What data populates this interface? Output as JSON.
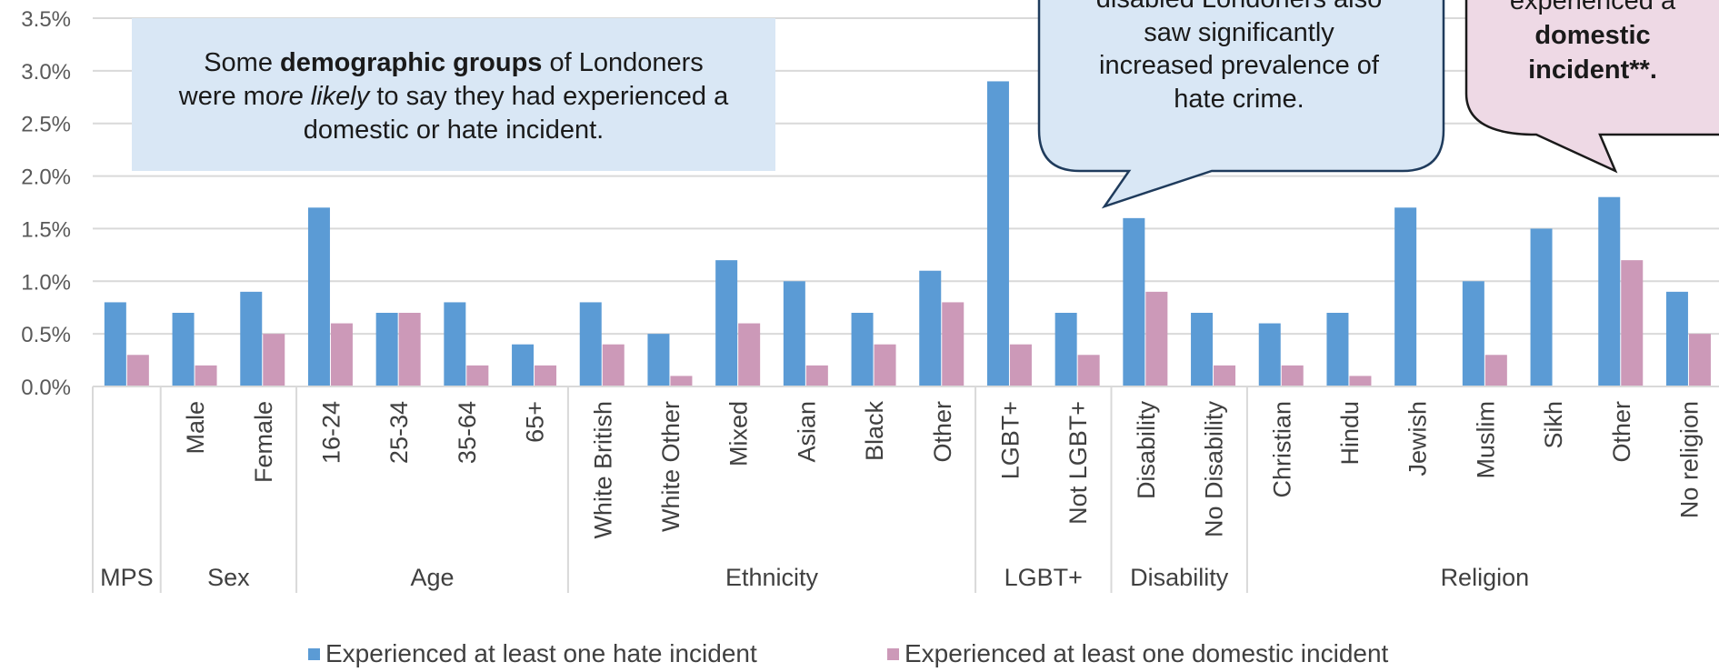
{
  "chart_data": {
    "type": "bar",
    "ylim": [
      0,
      3.5
    ],
    "y_ticks": [
      "0.0%",
      "0.5%",
      "1.0%",
      "1.5%",
      "2.0%",
      "2.5%",
      "3.0%",
      "3.5%"
    ],
    "y_tick_values": [
      0,
      0.5,
      1.0,
      1.5,
      2.0,
      2.5,
      3.0,
      3.5
    ],
    "grid": "horizontal",
    "legend_position": "bottom",
    "categories": [
      "",
      "Male",
      "Female",
      "16-24",
      "25-34",
      "35-64",
      "65+",
      "White British",
      "White Other",
      "Mixed",
      "Asian",
      "Black",
      "Other",
      "LGBT+",
      "Not LGBT+",
      "Disability",
      "No Disability",
      "Christian",
      "Hindu",
      "Jewish",
      "Muslim",
      "Sikh",
      "Other",
      "No religion"
    ],
    "groups": [
      {
        "label": "MPS",
        "count": 1
      },
      {
        "label": "Sex",
        "count": 2
      },
      {
        "label": "Age",
        "count": 4
      },
      {
        "label": "Ethnicity",
        "count": 6
      },
      {
        "label": "LGBT+",
        "count": 2
      },
      {
        "label": "Disability",
        "count": 2
      },
      {
        "label": "Religion",
        "count": 7
      }
    ],
    "series": [
      {
        "name": "Experienced at least one hate incident",
        "color": "#5b9bd5",
        "values": [
          0.8,
          0.7,
          0.9,
          1.7,
          0.7,
          0.8,
          0.4,
          0.8,
          0.5,
          1.2,
          1.0,
          0.7,
          1.1,
          2.9,
          0.7,
          1.6,
          0.7,
          0.6,
          0.7,
          1.7,
          1.0,
          1.5,
          1.8,
          0.9
        ]
      },
      {
        "name": "Experienced at least one domestic incident",
        "color": "#cc99b8",
        "values": [
          0.3,
          0.2,
          0.5,
          0.6,
          0.7,
          0.2,
          0.2,
          0.4,
          0.1,
          0.6,
          0.2,
          0.4,
          0.8,
          0.4,
          0.3,
          0.9,
          0.2,
          0.2,
          0.1,
          0,
          0.3,
          0,
          1.2,
          0.5
        ]
      }
    ],
    "annotations": {
      "box1": {
        "line1_bold": "demographic groups",
        "line1_pre": "Some ",
        "line1_post": " of Londoners",
        "line2_pre": "were mo",
        "line2_italic": "re likely",
        "line2_post": " to say they had experienced a",
        "line3": "domestic or hate incident."
      },
      "callout_blue": {
        "lines": [
          "disabled Londoners also",
          "saw significantly",
          "increased prevalence of",
          "hate crime."
        ]
      },
      "callout_pink": {
        "line1": "experienced a",
        "line2": "domestic",
        "line3": "incident**."
      }
    }
  }
}
